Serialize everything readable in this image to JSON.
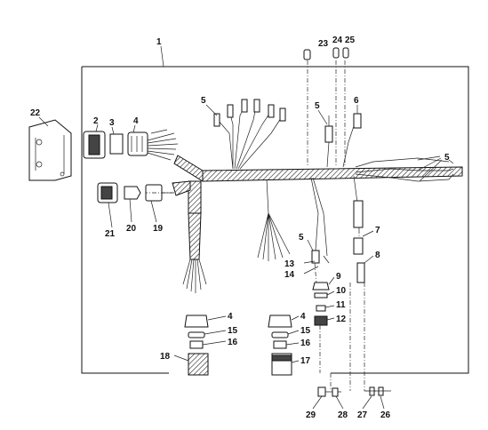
{
  "diagram": {
    "callouts": {
      "c1": "1",
      "c2": "2",
      "c3": "3",
      "c4a": "4",
      "c4b": "4",
      "c4c": "4",
      "c5a": "5",
      "c5b": "5",
      "c5c": "5",
      "c5d": "5",
      "c6": "6",
      "c7": "7",
      "c8": "8",
      "c9": "9",
      "c10": "10",
      "c11": "11",
      "c12": "12",
      "c13": "13",
      "c14": "14",
      "c15a": "15",
      "c15b": "15",
      "c16a": "16",
      "c16b": "16",
      "c17": "17",
      "c18": "18",
      "c19": "19",
      "c20": "20",
      "c21": "21",
      "c22": "22",
      "c23": "23",
      "c24": "24",
      "c25": "25",
      "c26": "26",
      "c27": "27",
      "c28": "28",
      "c29": "29"
    }
  }
}
